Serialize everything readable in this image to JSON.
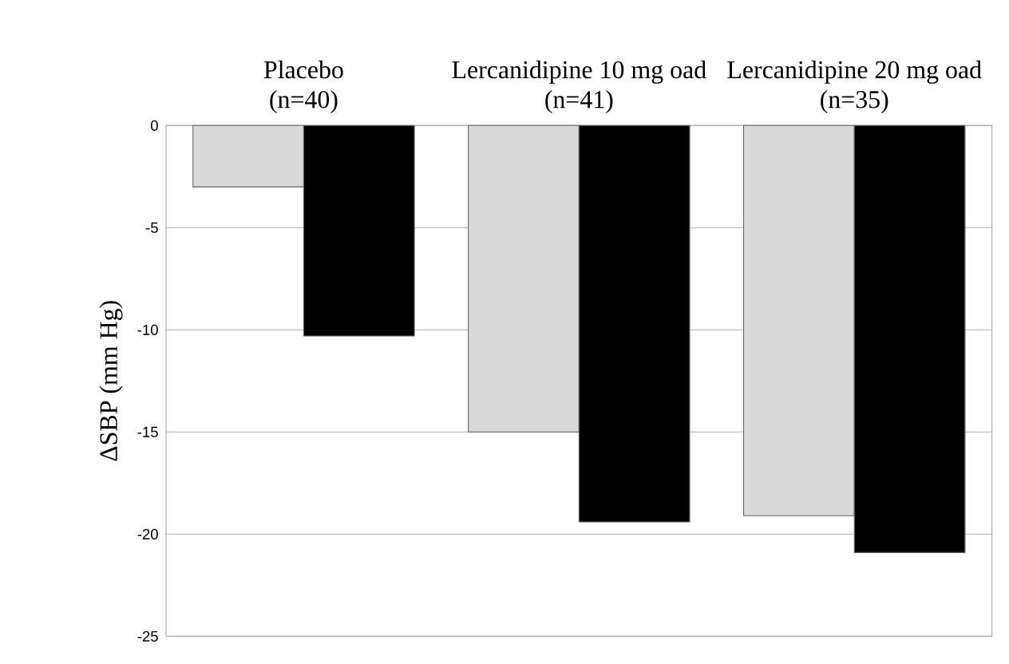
{
  "chart_data": {
    "type": "bar",
    "ylabel": "ΔSBP (mm Hg)",
    "categories": [
      "Placebo (n=40)",
      "Lercanidipine 10 mg oad (n=41)",
      "Lercanidipine 20 mg oad (n=35)"
    ],
    "series": [
      {
        "color": "#d9d9d9",
        "values": [
          -3,
          -15,
          -19.1
        ]
      },
      {
        "color": "#000000",
        "values": [
          -10.3,
          -19.4,
          -20.9
        ]
      }
    ],
    "ylim": [
      -25,
      0
    ],
    "yticks": [
      -25,
      -20,
      -15,
      -10,
      -5,
      0
    ],
    "grid": "y"
  }
}
